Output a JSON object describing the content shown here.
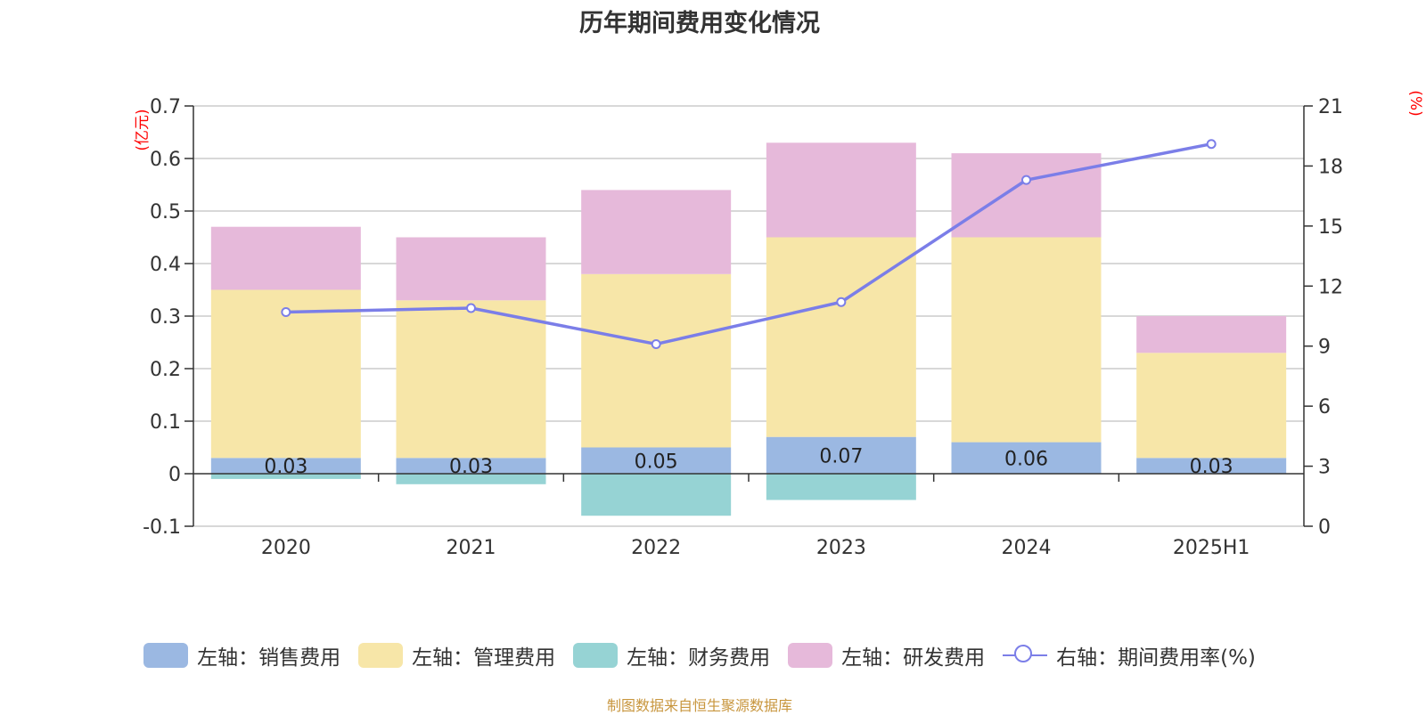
{
  "title": "历年期间费用变化情况",
  "source": "制图数据来自恒生聚源数据库",
  "chart_data": {
    "type": "bar",
    "stacked": true,
    "title": "历年期间费用变化情况",
    "categories": [
      "2020",
      "2021",
      "2022",
      "2023",
      "2024",
      "2025H1"
    ],
    "left_axis": {
      "unit": "(亿元)",
      "range": [
        -0.1,
        0.7
      ],
      "ticks": [
        "0.7",
        "0.6",
        "0.5",
        "0.4",
        "0.3",
        "0.2",
        "0.1",
        "0",
        "-0.1"
      ]
    },
    "right_axis": {
      "unit": "(%)",
      "range": [
        0,
        21
      ],
      "ticks": [
        "21",
        "18",
        "15",
        "12",
        "9",
        "6",
        "3",
        "0"
      ]
    },
    "series": [
      {
        "name": "左轴：销售费用",
        "axis": "left",
        "color": "#9bb8e2",
        "values": [
          0.03,
          0.03,
          0.05,
          0.07,
          0.06,
          0.03
        ],
        "labels": [
          "0.03",
          "0.03",
          "0.05",
          "0.07",
          "0.06",
          "0.03"
        ]
      },
      {
        "name": "左轴：管理费用",
        "axis": "left",
        "color": "#f7e6a8",
        "values": [
          0.32,
          0.3,
          0.33,
          0.38,
          0.39,
          0.2
        ]
      },
      {
        "name": "左轴：财务费用",
        "axis": "left",
        "color": "#96d3d4",
        "values": [
          -0.01,
          -0.02,
          -0.08,
          -0.05,
          0.0,
          0.0
        ]
      },
      {
        "name": "左轴：研发费用",
        "axis": "left",
        "color": "#e6b9da",
        "values": [
          0.12,
          0.12,
          0.16,
          0.18,
          0.16,
          0.07
        ]
      },
      {
        "name": "右轴：期间费用率(%)",
        "axis": "right",
        "type": "line",
        "color": "#7b7ee8",
        "values": [
          10.7,
          10.9,
          9.1,
          11.2,
          17.3,
          19.1
        ]
      }
    ],
    "grid": true,
    "legend_position": "bottom"
  }
}
